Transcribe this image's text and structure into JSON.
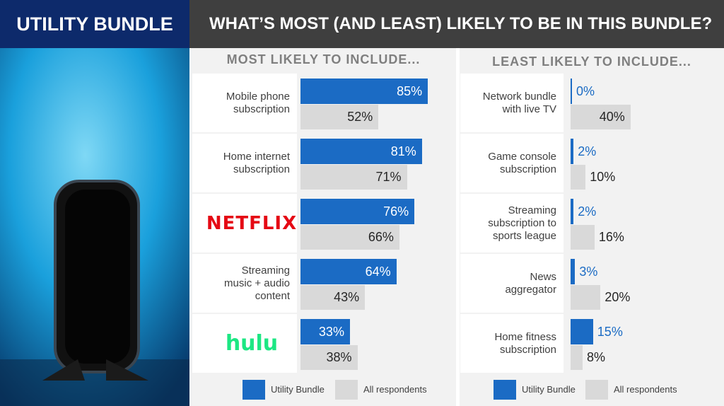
{
  "header": {
    "left_title": "UTILITY BUNDLE",
    "right_title": "WHAT’S MOST (AND LEAST) LIKELY TO BE IN THIS BUNDLE?"
  },
  "chart_data": [
    {
      "type": "bar",
      "orientation": "horizontal",
      "title": "MOST LIKELY TO INCLUDE...",
      "categories": [
        "Mobile phone subscription",
        "Home internet subscription",
        "NETFLIX",
        "Streaming music + audio content",
        "hulu"
      ],
      "xlim": [
        0,
        100
      ],
      "series": [
        {
          "name": "Utility Bundle",
          "color": "#1b6bc4",
          "values": [
            85,
            81,
            76,
            64,
            33
          ],
          "value_labels": [
            "85%",
            "81%",
            "76%",
            "64%",
            "33%"
          ]
        },
        {
          "name": "All respondents",
          "color": "#d9d9d9",
          "values": [
            52,
            71,
            66,
            43,
            38
          ],
          "value_labels": [
            "52%",
            "71%",
            "66%",
            "43%",
            "38%"
          ]
        }
      ]
    },
    {
      "type": "bar",
      "orientation": "horizontal",
      "title": "LEAST LIKELY TO INCLUDE...",
      "categories": [
        "Network bundle with live TV",
        "Game console subscription",
        "Streaming subscription to sports league",
        "News aggregator",
        "Home fitness subscription"
      ],
      "xlim": [
        0,
        100
      ],
      "series": [
        {
          "name": "Utility Bundle",
          "color": "#1b6bc4",
          "values": [
            0,
            2,
            2,
            3,
            15
          ],
          "value_labels": [
            "0%",
            "2%",
            "2%",
            "3%",
            "15%"
          ]
        },
        {
          "name": "All respondents",
          "color": "#d9d9d9",
          "values": [
            40,
            10,
            16,
            20,
            8
          ],
          "value_labels": [
            "40%",
            "10%",
            "16%",
            "20%",
            "8%"
          ]
        }
      ]
    }
  ]
}
